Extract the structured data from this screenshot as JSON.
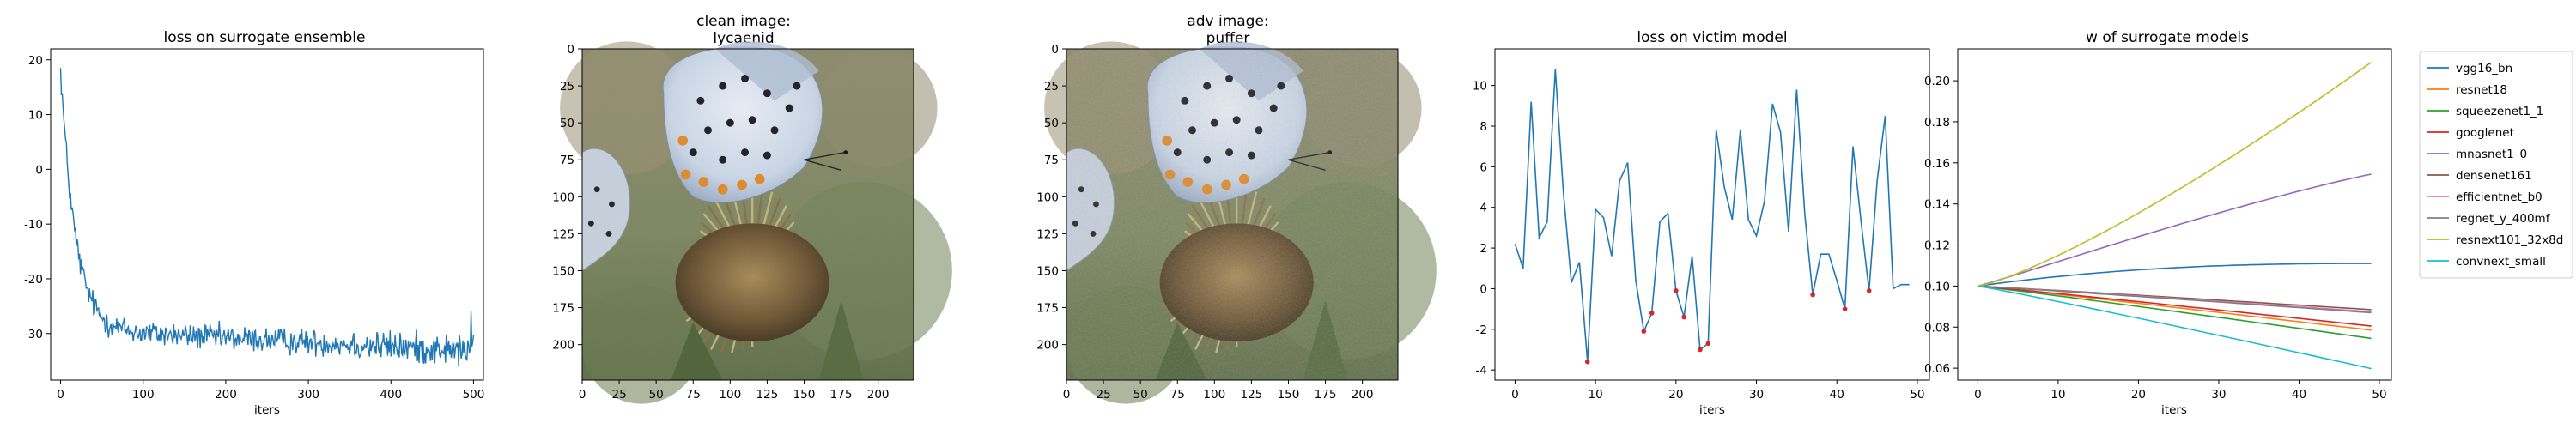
{
  "chart_data": [
    {
      "type": "line",
      "title": "loss on surrogate ensemble",
      "xlabel": "iters",
      "ylabel": "",
      "xlim": [
        -12,
        512
      ],
      "ylim": [
        -38.5,
        22
      ],
      "xticks": [
        0,
        100,
        200,
        300,
        400,
        500
      ],
      "yticks": [
        20,
        10,
        0,
        -10,
        -20,
        -30
      ],
      "color": "#1f77b4",
      "curve": {
        "start": 18.5,
        "asymptote": -30,
        "amplitude": 48.5,
        "tau": 18,
        "drift_per_iter": -0.008,
        "noise": 1.7,
        "iters": 500
      }
    },
    {
      "type": "image",
      "title_line1": "clean image:",
      "title_line2": "lycaenid",
      "xticks": [
        0,
        25,
        50,
        75,
        100,
        125,
        150,
        175,
        200
      ],
      "yticks": [
        0,
        25,
        50,
        75,
        100,
        125,
        150,
        175,
        200
      ],
      "size": 224
    },
    {
      "type": "image",
      "title_line1": "adv image:",
      "title_line2": "puffer",
      "xticks": [
        0,
        25,
        50,
        75,
        100,
        125,
        150,
        175,
        200
      ],
      "yticks": [
        0,
        25,
        50,
        75,
        100,
        125,
        150,
        175,
        200
      ],
      "size": 224
    },
    {
      "type": "line",
      "title": "loss on victim model",
      "xlabel": "iters",
      "ylabel": "",
      "xlim": [
        -2.5,
        51.5
      ],
      "ylim": [
        -4.5,
        11.8
      ],
      "xticks": [
        0,
        10,
        20,
        30,
        40,
        50
      ],
      "yticks": [
        10,
        8,
        6,
        4,
        2,
        0,
        -2,
        -4
      ],
      "color": "#1f77b4",
      "marker_color": "#d62728",
      "x": [
        0,
        1,
        2,
        3,
        4,
        5,
        6,
        7,
        8,
        9,
        10,
        11,
        12,
        13,
        14,
        15,
        16,
        17,
        18,
        19,
        20,
        21,
        22,
        23,
        24,
        25,
        26,
        27,
        28,
        29,
        30,
        31,
        32,
        33,
        34,
        35,
        36,
        37,
        38,
        39,
        40,
        41,
        42,
        43,
        44,
        45,
        46,
        47,
        48,
        49
      ],
      "y": [
        2.2,
        1.0,
        9.2,
        2.5,
        3.3,
        10.8,
        4.8,
        0.3,
        1.3,
        -3.6,
        3.9,
        3.5,
        1.6,
        5.3,
        6.2,
        0.4,
        -2.1,
        -1.2,
        3.3,
        3.7,
        -0.1,
        -1.4,
        1.6,
        -3.0,
        -2.7,
        7.8,
        5.0,
        3.4,
        7.8,
        3.4,
        2.6,
        4.3,
        9.1,
        7.7,
        2.8,
        9.8,
        3.7,
        -0.3,
        1.7,
        1.7,
        0.4,
        -1.0,
        7.0,
        3.3,
        -0.1,
        5.3,
        8.5,
        0.0,
        0.2,
        0.2
      ],
      "marked_x": [
        9,
        16,
        17,
        20,
        21,
        23,
        24,
        37,
        41,
        44
      ]
    },
    {
      "type": "line",
      "title": "w of surrogate models",
      "xlabel": "iters",
      "ylabel": "",
      "xlim": [
        -2.5,
        51.5
      ],
      "ylim": [
        0.0542,
        0.2155
      ],
      "xticks": [
        0,
        10,
        20,
        30,
        40,
        50
      ],
      "yticks": [
        0.2,
        0.18,
        0.16,
        0.14,
        0.12,
        0.1,
        0.08,
        0.06
      ],
      "legend_position": "outside-right",
      "series": [
        {
          "name": "vgg16_bn",
          "color": "#1f77b4",
          "end": 0.111,
          "shape": "sat"
        },
        {
          "name": "resnet18",
          "color": "#ff7f0e",
          "end": 0.0785,
          "shape": "lin"
        },
        {
          "name": "squeezenet1_1",
          "color": "#2ca02c",
          "end": 0.0745,
          "shape": "lin"
        },
        {
          "name": "googlenet",
          "color": "#d62728",
          "end": 0.0805,
          "shape": "lin"
        },
        {
          "name": "mnasnet1_0",
          "color": "#9467bd",
          "end": 0.1545,
          "shape": "conc"
        },
        {
          "name": "densenet161",
          "color": "#8c564b",
          "end": 0.0885,
          "shape": "lin"
        },
        {
          "name": "efficientnet_b0",
          "color": "#e377c2",
          "end": 0.0875,
          "shape": "lin"
        },
        {
          "name": "regnet_y_400mf",
          "color": "#7f7f7f",
          "end": 0.087,
          "shape": "lin"
        },
        {
          "name": "resnext101_32x8d",
          "color": "#bcbd22",
          "end": 0.209,
          "shape": "conv"
        },
        {
          "name": "convnext_small",
          "color": "#17becf",
          "end": 0.0598,
          "shape": "lin"
        }
      ]
    }
  ]
}
